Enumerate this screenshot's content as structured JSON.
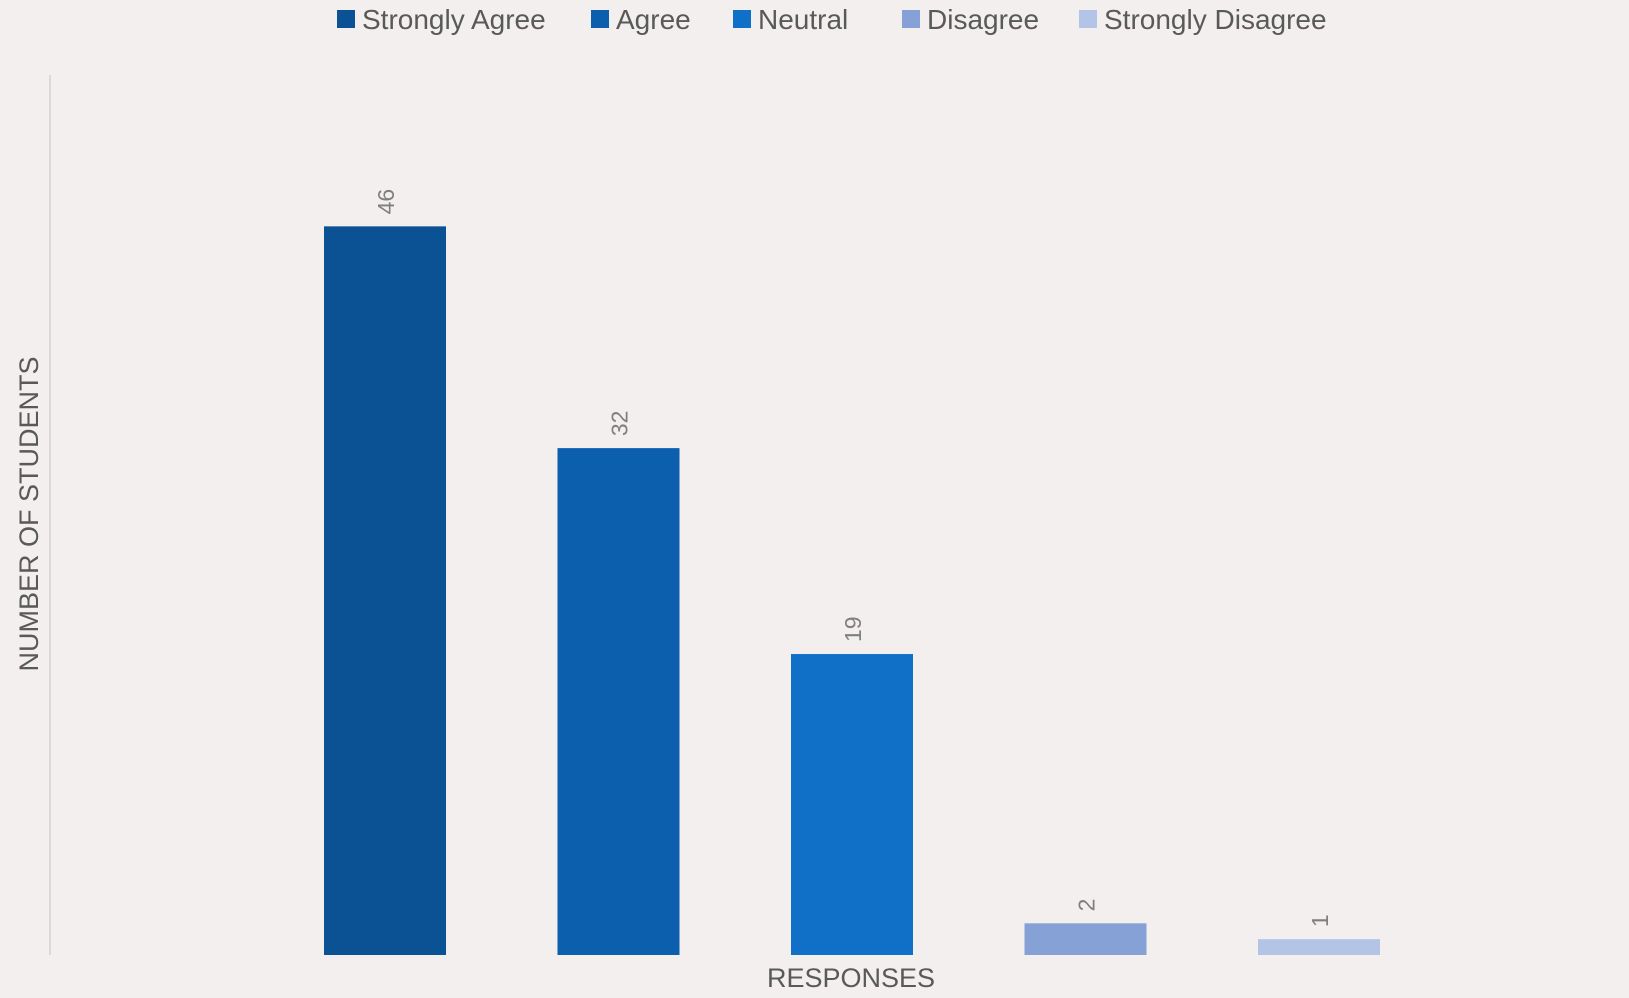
{
  "chart_data": {
    "type": "bar",
    "categories": [
      "Strongly Agree",
      "Agree",
      "Neutral",
      "Disagree",
      "Strongly Disagree"
    ],
    "values": [
      46,
      32,
      19,
      2,
      1
    ],
    "colors": [
      "#0a5294",
      "#0c5fad",
      "#1070c8",
      "#86a1d6",
      "#b4c4e6"
    ],
    "title": "",
    "xlabel": "RESPONSES",
    "ylabel": "NUMBER OF STUDENTS",
    "ylim": [
      0,
      50
    ],
    "grid": false,
    "legend_position": "top-center",
    "data_labels": true,
    "data_label_orientation": "rotated"
  },
  "theme": {
    "background": "#f2efee",
    "text_color": "#595959",
    "data_label_color": "#7f7f7f",
    "axis_line_color": "#d4d0cf"
  }
}
